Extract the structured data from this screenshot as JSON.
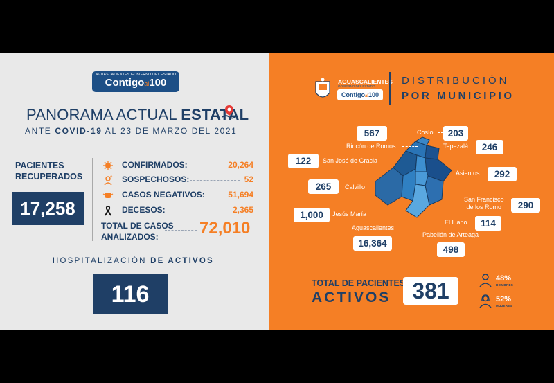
{
  "logo": {
    "top_text": "AGUASCALIENTES GOBIERNO DEL ESTADO",
    "main": "Contigo",
    "connector": "al",
    "number": "100"
  },
  "panorama": {
    "title_regular": "PANORAMA ACTUAL ",
    "title_bold": "ESTATAL",
    "subtitle_pre": "ANTE ",
    "subtitle_bold": "COVID-19",
    "subtitle_post": " AL 23 DE MARZO DEL 2021"
  },
  "recovered": {
    "label_line1": "PACIENTES",
    "label_line2": "RECUPERADOS",
    "value": "17,258"
  },
  "stats": [
    {
      "label": "CONFIRMADOS:",
      "value": "20,264",
      "icon": "virus-icon"
    },
    {
      "label": "SOSPECHOSOS:",
      "value": "52",
      "icon": "suspect-icon"
    },
    {
      "label": "CASOS NEGATIVOS:",
      "value": "51,694",
      "icon": "mask-icon"
    },
    {
      "label": "DECESOS:",
      "value": "2,365",
      "icon": "mourning-ribbon-icon"
    }
  ],
  "total_cases": {
    "label_line1": "TOTAL DE CASOS",
    "label_line2": "ANALIZADOS:",
    "value": "72,010"
  },
  "hospitalization": {
    "title_regular": "HOSPITALIZACIÓN ",
    "title_bold": "DE ACTIVOS",
    "value": "116"
  },
  "right_logo": {
    "state": "AGUASCALIENTES",
    "gov": "GOBIERNO DEL ESTADO",
    "main": "Contigo",
    "connector": "al",
    "number": "100"
  },
  "distribution": {
    "title_line1": "DISTRIBUCIÓN",
    "title_line2": "POR MUNICIPIO"
  },
  "municipalities": {
    "rincon": {
      "name": "Rincón de Romos",
      "value": "567"
    },
    "cosio": {
      "name": "Cosío",
      "value": "203"
    },
    "tepezala": {
      "name": "Tepezalá",
      "value": "246"
    },
    "sanjose": {
      "name": "San José de Gracia",
      "value": "122"
    },
    "asientos": {
      "name": "Asientos",
      "value": "292"
    },
    "calvillo": {
      "name": "Calvillo",
      "value": "265"
    },
    "sanfrancisco": {
      "name_line1": "San Francisco",
      "name_line2": "de los Romo",
      "value": "290"
    },
    "jesusmaria": {
      "name": "Jesús María",
      "value": "1,000"
    },
    "llano": {
      "name": "El Llano",
      "value": "114"
    },
    "aguascalientes": {
      "name": "Aguascalientes",
      "value": "16,364"
    },
    "pabellon": {
      "name": "Pabellón de Arteaga",
      "value": "498"
    }
  },
  "active": {
    "label_line1": "TOTAL DE PACIENTES",
    "label_line2": "ACTIVOS",
    "value": "381",
    "men_pct": "48%",
    "men_label": "HOMBRES",
    "women_pct": "52%",
    "women_label": "MUJERES"
  },
  "colors": {
    "navy": "#1f3f66",
    "orange": "#f57f25",
    "light_gray": "#e9e9e9"
  }
}
